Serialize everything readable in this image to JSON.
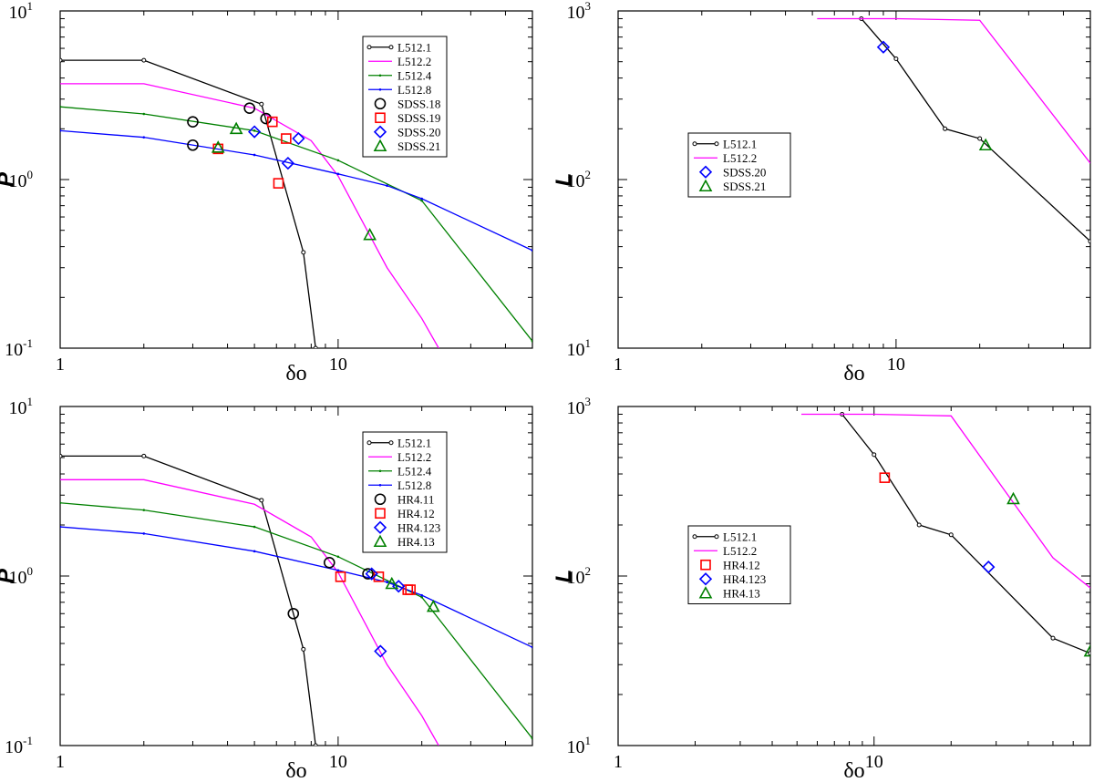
{
  "figure": {
    "layout": "2x2 grid of log-log panels"
  },
  "chart_data": [
    {
      "type": "line",
      "panel": "top-left",
      "xlabel": "δo",
      "ylabel": "P",
      "xscale": "log",
      "yscale": "log",
      "xlim": [
        1,
        50
      ],
      "ylim": [
        0.1,
        10
      ],
      "xtick_labels": [
        {
          "base": "1",
          "exp": ""
        },
        {
          "base": "10",
          "exp": ""
        }
      ],
      "ytick_labels": [
        {
          "base": "10",
          "exp": "-1"
        },
        {
          "base": "10",
          "exp": "0"
        },
        {
          "base": "10",
          "exp": "1"
        }
      ],
      "legend_position": "top-right",
      "series": [
        {
          "name": "L512.1",
          "color": "#000000",
          "style": "line",
          "marker": "small-circle",
          "x": [
            1,
            2,
            5.3,
            7.5,
            8.3
          ],
          "y": [
            5.1,
            5.1,
            2.8,
            0.37,
            0.1
          ]
        },
        {
          "name": "L512.2",
          "color": "#ff00ff",
          "style": "line",
          "marker": "none",
          "x": [
            1,
            2,
            5,
            8,
            10,
            15,
            20,
            23
          ],
          "y": [
            3.7,
            3.7,
            2.65,
            1.7,
            1.05,
            0.3,
            0.15,
            0.1
          ]
        },
        {
          "name": "L512.4",
          "color": "#008000",
          "style": "line",
          "marker": "tiny-dot",
          "x": [
            1,
            2,
            5,
            10,
            20,
            50
          ],
          "y": [
            2.7,
            2.45,
            1.95,
            1.3,
            0.75,
            0.11
          ]
        },
        {
          "name": "L512.8",
          "color": "#0000ff",
          "style": "line",
          "marker": "tiny-dot",
          "x": [
            1,
            2,
            5,
            10,
            15,
            20,
            50
          ],
          "y": [
            1.95,
            1.78,
            1.4,
            1.08,
            0.92,
            0.77,
            0.38
          ]
        },
        {
          "name": "SDSS.18",
          "color": "#000000",
          "style": "marker",
          "marker": "circle",
          "x": [
            3,
            3,
            4.8,
            5.5
          ],
          "y": [
            2.2,
            1.6,
            2.65,
            2.3
          ]
        },
        {
          "name": "SDSS.19",
          "color": "#ff0000",
          "style": "marker",
          "marker": "square",
          "x": [
            3.7,
            5.8,
            6.1,
            6.5
          ],
          "y": [
            1.52,
            2.2,
            0.95,
            1.75
          ]
        },
        {
          "name": "SDSS.20",
          "color": "#0000ff",
          "style": "marker",
          "marker": "diamond",
          "x": [
            5,
            6.6,
            7.2
          ],
          "y": [
            1.92,
            1.25,
            1.75
          ]
        },
        {
          "name": "SDSS.21",
          "color": "#008000",
          "style": "marker",
          "marker": "triangle",
          "x": [
            3.7,
            4.3,
            13
          ],
          "y": [
            1.55,
            2.0,
            0.47
          ]
        }
      ]
    },
    {
      "type": "line",
      "panel": "top-right",
      "xlabel": "δo",
      "ylabel": "L",
      "xscale": "log",
      "yscale": "log",
      "xlim": [
        1,
        50
      ],
      "ylim": [
        10,
        1000
      ],
      "xtick_labels": [
        {
          "base": "1",
          "exp": ""
        },
        {
          "base": "10",
          "exp": ""
        }
      ],
      "ytick_labels": [
        {
          "base": "10",
          "exp": "1"
        },
        {
          "base": "10",
          "exp": "2"
        },
        {
          "base": "10",
          "exp": "3"
        }
      ],
      "legend_position": "center-left",
      "series": [
        {
          "name": "L512.1",
          "color": "#000000",
          "style": "line",
          "marker": "small-circle",
          "x": [
            7.5,
            10,
            15,
            20,
            50
          ],
          "y": [
            900,
            520,
            200,
            175,
            43
          ]
        },
        {
          "name": "L512.2",
          "color": "#ff00ff",
          "style": "line",
          "marker": "none",
          "x": [
            5.2,
            10,
            20,
            50
          ],
          "y": [
            900,
            900,
            880,
            125
          ]
        },
        {
          "name": "SDSS.20",
          "color": "#0000ff",
          "style": "marker",
          "marker": "diamond",
          "x": [
            9
          ],
          "y": [
            610
          ]
        },
        {
          "name": "SDSS.21",
          "color": "#008000",
          "style": "marker",
          "marker": "triangle",
          "x": [
            21
          ],
          "y": [
            160
          ]
        }
      ]
    },
    {
      "type": "line",
      "panel": "bottom-left",
      "xlabel": "δo",
      "ylabel": "P",
      "xscale": "log",
      "yscale": "log",
      "xlim": [
        1,
        50
      ],
      "ylim": [
        0.1,
        10
      ],
      "xtick_labels": [
        {
          "base": "1",
          "exp": ""
        },
        {
          "base": "10",
          "exp": ""
        }
      ],
      "ytick_labels": [
        {
          "base": "10",
          "exp": "-1"
        },
        {
          "base": "10",
          "exp": "0"
        },
        {
          "base": "10",
          "exp": "1"
        }
      ],
      "legend_position": "top-right",
      "series": [
        {
          "name": "L512.1",
          "color": "#000000",
          "style": "line",
          "marker": "small-circle",
          "x": [
            1,
            2,
            5.3,
            7.5,
            8.3
          ],
          "y": [
            5.1,
            5.1,
            2.8,
            0.37,
            0.1
          ]
        },
        {
          "name": "L512.2",
          "color": "#ff00ff",
          "style": "line",
          "marker": "none",
          "x": [
            1,
            2,
            5,
            8,
            10,
            15,
            20,
            23
          ],
          "y": [
            3.7,
            3.7,
            2.65,
            1.7,
            1.05,
            0.3,
            0.15,
            0.1
          ]
        },
        {
          "name": "L512.4",
          "color": "#008000",
          "style": "line",
          "marker": "tiny-dot",
          "x": [
            1,
            2,
            5,
            10,
            20,
            50
          ],
          "y": [
            2.7,
            2.45,
            1.95,
            1.3,
            0.75,
            0.11
          ]
        },
        {
          "name": "L512.8",
          "color": "#0000ff",
          "style": "line",
          "marker": "tiny-dot",
          "x": [
            1,
            2,
            5,
            10,
            15,
            20,
            50
          ],
          "y": [
            1.95,
            1.78,
            1.4,
            1.08,
            0.92,
            0.77,
            0.38
          ]
        },
        {
          "name": "HR4.11",
          "color": "#000000",
          "style": "marker",
          "marker": "circle",
          "x": [
            6.9,
            9.3,
            12.8
          ],
          "y": [
            0.6,
            1.2,
            1.03
          ]
        },
        {
          "name": "HR4.12",
          "color": "#ff0000",
          "style": "marker",
          "marker": "square",
          "x": [
            10.2,
            14,
            17.8,
            18.2
          ],
          "y": [
            0.99,
            0.99,
            0.83,
            0.83
          ]
        },
        {
          "name": "HR4.123",
          "color": "#0000ff",
          "style": "marker",
          "marker": "diamond",
          "x": [
            13.2,
            14.2,
            16.5
          ],
          "y": [
            1.03,
            0.36,
            0.87
          ]
        },
        {
          "name": "HR4.13",
          "color": "#008000",
          "style": "marker",
          "marker": "triangle",
          "x": [
            15.6,
            22
          ],
          "y": [
            0.9,
            0.66
          ]
        }
      ]
    },
    {
      "type": "line",
      "panel": "bottom-right",
      "xlabel": "δo",
      "ylabel": "L",
      "xscale": "log",
      "yscale": "log",
      "xlim": [
        1,
        70
      ],
      "ylim": [
        10,
        1000
      ],
      "xtick_labels": [
        {
          "base": "1",
          "exp": ""
        },
        {
          "base": "10",
          "exp": ""
        }
      ],
      "ytick_labels": [
        {
          "base": "10",
          "exp": "1"
        },
        {
          "base": "10",
          "exp": "2"
        },
        {
          "base": "10",
          "exp": "3"
        }
      ],
      "legend_position": "center-left",
      "series": [
        {
          "name": "L512.1",
          "color": "#000000",
          "style": "line",
          "marker": "small-circle",
          "x": [
            7.5,
            10,
            15,
            20,
            50,
            70
          ],
          "y": [
            900,
            520,
            200,
            175,
            43,
            35
          ]
        },
        {
          "name": "L512.2",
          "color": "#ff00ff",
          "style": "line",
          "marker": "none",
          "x": [
            5.2,
            10,
            20,
            50,
            70
          ],
          "y": [
            900,
            900,
            880,
            128,
            85
          ]
        },
        {
          "name": "HR4.12",
          "color": "#ff0000",
          "style": "marker",
          "marker": "square",
          "x": [
            11
          ],
          "y": [
            380
          ]
        },
        {
          "name": "HR4.123",
          "color": "#0000ff",
          "style": "marker",
          "marker": "diamond",
          "x": [
            28
          ],
          "y": [
            113
          ]
        },
        {
          "name": "HR4.13",
          "color": "#008000",
          "style": "marker",
          "marker": "triangle",
          "x": [
            35,
            70
          ],
          "y": [
            285,
            36
          ]
        }
      ]
    }
  ]
}
